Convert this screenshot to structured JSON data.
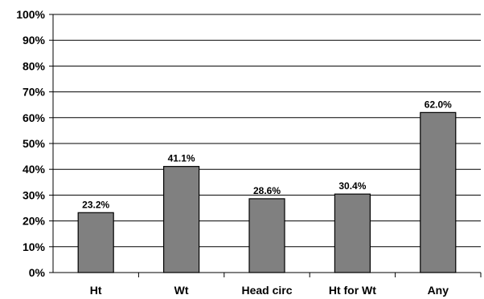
{
  "chart_data": {
    "type": "bar",
    "categories": [
      "Ht",
      "Wt",
      "Head circ",
      "Ht for Wt",
      "Any"
    ],
    "values": [
      23.2,
      41.1,
      28.6,
      30.4,
      62.0
    ],
    "data_labels": [
      "23.2%",
      "41.1%",
      "28.6%",
      "30.4%",
      "62.0%"
    ],
    "y_ticks": [
      "0%",
      "10%",
      "20%",
      "30%",
      "40%",
      "50%",
      "60%",
      "70%",
      "80%",
      "90%",
      "100%"
    ],
    "ylim": [
      0,
      100
    ],
    "grid": true,
    "bar_color": "#808080",
    "bar_edge_color": "#000000",
    "title": "",
    "xlabel": "",
    "ylabel": ""
  }
}
